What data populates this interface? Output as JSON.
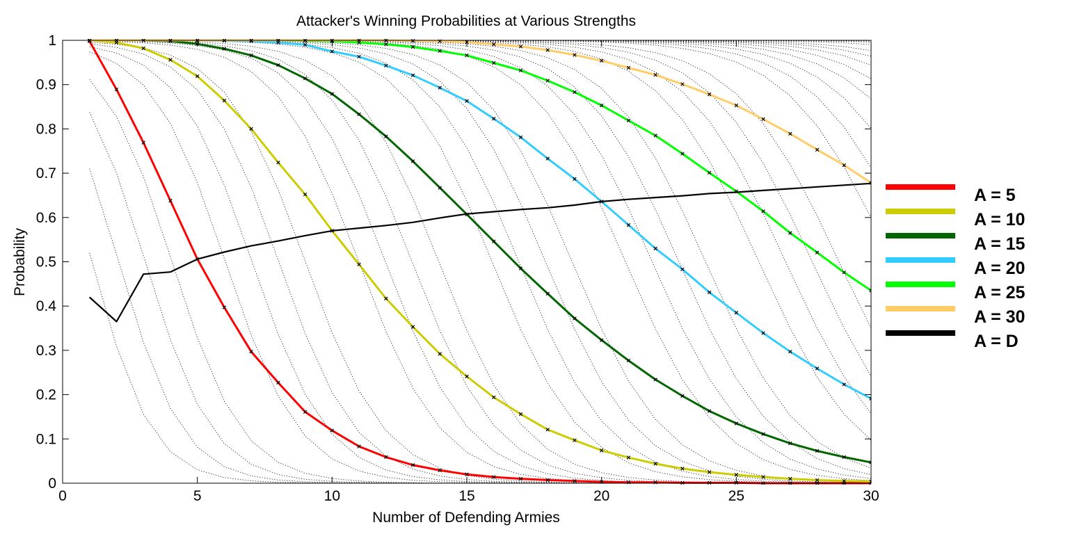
{
  "chart_data": {
    "type": "line",
    "title": "Attacker's Winning Probabilities at Various Strengths",
    "xlabel": "Number of Defending Armies",
    "ylabel": "Probability",
    "xlim": [
      0,
      30
    ],
    "ylim": [
      0,
      1
    ],
    "x_ticks": [
      0,
      5,
      10,
      15,
      20,
      25,
      30
    ],
    "y_ticks": [
      0,
      0.1,
      0.2,
      0.3,
      0.4,
      0.5,
      0.6,
      0.7,
      0.8,
      0.9,
      1
    ],
    "x_tick_labels": [
      "0",
      "5",
      "10",
      "15",
      "20",
      "25",
      "30"
    ],
    "y_tick_labels": [
      "0",
      "0.1",
      "0.2",
      "0.3",
      "0.4",
      "0.5",
      "0.6",
      "0.7",
      "0.8",
      "0.9",
      "1"
    ],
    "grid": false,
    "legend_position": "right-outside",
    "x": [
      1,
      2,
      3,
      4,
      5,
      6,
      7,
      8,
      9,
      10,
      11,
      12,
      13,
      14,
      15,
      16,
      17,
      18,
      19,
      20,
      21,
      22,
      23,
      24,
      25,
      26,
      27,
      28,
      29,
      30
    ],
    "series": [
      {
        "name": "A = 5",
        "color": "#ff0000",
        "values": [
          0.998,
          0.889,
          0.769,
          0.638,
          0.506,
          0.397,
          0.297,
          0.227,
          0.161,
          0.119,
          0.083,
          0.059,
          0.041,
          0.029,
          0.02,
          0.014,
          0.01,
          0.007,
          0.005,
          0.003,
          0.002,
          0.002,
          0.001,
          0.001,
          0.001,
          0.0,
          0.0,
          0.0,
          0.0,
          0.0
        ]
      },
      {
        "name": "A = 10",
        "color": "#cccc00",
        "values": [
          1.0,
          0.995,
          0.982,
          0.956,
          0.919,
          0.864,
          0.8,
          0.724,
          0.652,
          0.57,
          0.494,
          0.417,
          0.353,
          0.292,
          0.241,
          0.194,
          0.156,
          0.121,
          0.097,
          0.074,
          0.058,
          0.044,
          0.033,
          0.025,
          0.019,
          0.014,
          0.01,
          0.007,
          0.005,
          0.004
        ]
      },
      {
        "name": "A = 15",
        "color": "#006600",
        "values": [
          1.0,
          1.0,
          1.0,
          0.998,
          0.992,
          0.981,
          0.966,
          0.944,
          0.914,
          0.879,
          0.833,
          0.783,
          0.727,
          0.667,
          0.607,
          0.546,
          0.485,
          0.428,
          0.372,
          0.323,
          0.277,
          0.234,
          0.197,
          0.163,
          0.135,
          0.111,
          0.09,
          0.073,
          0.059,
          0.047
        ]
      },
      {
        "name": "A = 20",
        "color": "#33ccff",
        "values": [
          1.0,
          1.0,
          1.0,
          1.0,
          1.0,
          0.999,
          0.998,
          0.995,
          0.99,
          0.975,
          0.963,
          0.943,
          0.921,
          0.893,
          0.863,
          0.823,
          0.781,
          0.733,
          0.687,
          0.636,
          0.583,
          0.53,
          0.483,
          0.431,
          0.385,
          0.339,
          0.297,
          0.259,
          0.223,
          0.191
        ]
      },
      {
        "name": "A = 25",
        "color": "#00ff00",
        "values": [
          1.0,
          1.0,
          1.0,
          1.0,
          1.0,
          1.0,
          1.0,
          1.0,
          0.999,
          0.998,
          0.995,
          0.991,
          0.985,
          0.976,
          0.966,
          0.949,
          0.932,
          0.909,
          0.883,
          0.853,
          0.819,
          0.785,
          0.744,
          0.701,
          0.659,
          0.614,
          0.565,
          0.521,
          0.476,
          0.435
        ]
      },
      {
        "name": "A = 30",
        "color": "#ffcc66",
        "values": [
          1.0,
          1.0,
          1.0,
          1.0,
          1.0,
          1.0,
          1.0,
          1.0,
          1.0,
          1.0,
          1.0,
          1.0,
          0.999,
          0.998,
          0.996,
          0.991,
          0.986,
          0.978,
          0.967,
          0.954,
          0.938,
          0.922,
          0.901,
          0.878,
          0.853,
          0.822,
          0.789,
          0.753,
          0.718,
          0.678
        ]
      },
      {
        "name": "A = D",
        "color": "#000000",
        "values": [
          0.42,
          0.365,
          0.472,
          0.477,
          0.506,
          0.522,
          0.536,
          0.547,
          0.559,
          0.57,
          0.576,
          0.582,
          0.589,
          0.599,
          0.608,
          0.613,
          0.618,
          0.622,
          0.628,
          0.636,
          0.641,
          0.645,
          0.649,
          0.654,
          0.657,
          0.661,
          0.665,
          0.669,
          0.673,
          0.677
        ]
      }
    ],
    "background_family": {
      "description": "dotted thin black curves for other attacker strengths with x markers at integer points",
      "color": "#000000",
      "attacker_strengths": [
        1,
        2,
        3,
        4,
        6,
        7,
        8,
        9,
        11,
        12,
        13,
        14,
        16,
        17,
        18,
        19,
        21,
        22,
        23,
        24,
        26,
        27,
        28,
        29,
        31,
        32,
        33,
        34,
        35,
        36,
        37,
        38,
        40,
        42,
        44,
        46
      ]
    }
  }
}
